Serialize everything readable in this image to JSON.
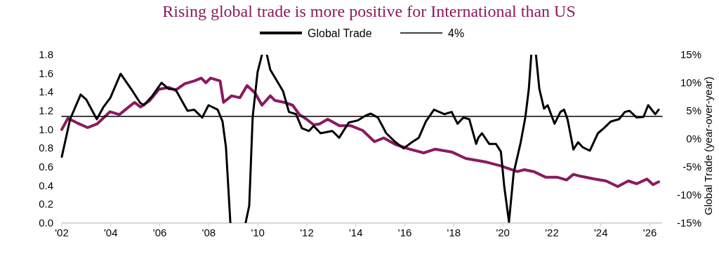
{
  "chart_data": {
    "type": "line",
    "title": "Rising global trade is more positive for International than US",
    "y2label": "Global Trade (year-over-year)",
    "legend": "top",
    "grid": false,
    "xlim": [
      2002,
      2026.5
    ],
    "xticks": [
      {
        "value": 2002,
        "label": "'02"
      },
      {
        "value": 2004,
        "label": "'04"
      },
      {
        "value": 2006,
        "label": "'06"
      },
      {
        "value": 2008,
        "label": "'08"
      },
      {
        "value": 2010,
        "label": "'10"
      },
      {
        "value": 2012,
        "label": "'12"
      },
      {
        "value": 2014,
        "label": "'14"
      },
      {
        "value": 2016,
        "label": "'16"
      },
      {
        "value": 2018,
        "label": "'18"
      },
      {
        "value": 2020,
        "label": "'20"
      },
      {
        "value": 2022,
        "label": "'22"
      },
      {
        "value": 2024,
        "label": "'24"
      },
      {
        "value": 2026,
        "label": "'26"
      }
    ],
    "ylim": [
      0,
      1.8
    ],
    "yticks": [
      {
        "value": 0,
        "label": "0.0"
      },
      {
        "value": 0.2,
        "label": "0.2"
      },
      {
        "value": 0.4,
        "label": "0.4"
      },
      {
        "value": 0.6,
        "label": "0.6"
      },
      {
        "value": 0.8,
        "label": "0.8"
      },
      {
        "value": 1,
        "label": "1.0"
      },
      {
        "value": 1.2,
        "label": "1.2"
      },
      {
        "value": 1.4,
        "label": "1.4"
      },
      {
        "value": 1.6,
        "label": "1.6"
      },
      {
        "value": 1.8,
        "label": "1.8"
      }
    ],
    "y2lim": [
      -15,
      15
    ],
    "y2ticks": [
      {
        "value": -15,
        "label": "-15%"
      },
      {
        "value": -10,
        "label": "-10%"
      },
      {
        "value": -5,
        "label": "-5%"
      },
      {
        "value": 0,
        "label": "0%"
      },
      {
        "value": 5,
        "label": "5%"
      },
      {
        "value": 10,
        "label": "10%"
      },
      {
        "value": 15,
        "label": "15%"
      }
    ],
    "series": [
      {
        "color": "#8b1a5e",
        "x": [
          2002.0,
          2002.25,
          2002.63,
          2003.06,
          2003.44,
          2003.97,
          2004.35,
          2004.73,
          2004.97,
          2005.21,
          2005.59,
          2005.97,
          2006.36,
          2006.64,
          2007.02,
          2007.41,
          2007.69,
          2007.88,
          2008.07,
          2008.46,
          2008.6,
          2008.93,
          2009.27,
          2009.56,
          2009.89,
          2010.17,
          2010.51,
          2010.7,
          2011.08,
          2011.42,
          2011.7,
          2011.99,
          2012.28,
          2012.52,
          2012.85,
          2013.33,
          2013.8,
          2014.28,
          2014.76,
          2015.14,
          2015.62,
          2016.19,
          2016.77,
          2017.24,
          2017.91,
          2018.49,
          2019.15,
          2019.35,
          2019.92,
          2020.59,
          2020.88,
          2021.26,
          2021.74,
          2022.21,
          2022.6,
          2022.88,
          2023.17,
          2023.74,
          2024.21,
          2024.69,
          2025.12,
          2025.46,
          2025.88,
          2026.13,
          2026.36
        ],
        "values": [
          1.0,
          1.12,
          1.07,
          1.02,
          1.06,
          1.19,
          1.16,
          1.24,
          1.29,
          1.24,
          1.31,
          1.43,
          1.45,
          1.42,
          1.49,
          1.52,
          1.55,
          1.5,
          1.55,
          1.52,
          1.29,
          1.36,
          1.34,
          1.47,
          1.39,
          1.26,
          1.36,
          1.31,
          1.29,
          1.26,
          1.16,
          1.11,
          1.05,
          1.06,
          1.11,
          1.04,
          1.04,
          0.99,
          0.87,
          0.91,
          0.84,
          0.79,
          0.75,
          0.79,
          0.76,
          0.69,
          0.66,
          0.65,
          0.61,
          0.55,
          0.57,
          0.55,
          0.49,
          0.49,
          0.46,
          0.52,
          0.5,
          0.47,
          0.45,
          0.39,
          0.45,
          0.42,
          0.47,
          0.41,
          0.44
        ]
      },
      {
        "name": "Global Trade",
        "color": "#000000",
        "axis": "y2",
        "x": [
          2002.0,
          2002.34,
          2002.77,
          2003.0,
          2003.43,
          2003.69,
          2003.98,
          2004.4,
          2004.83,
          2005.2,
          2005.35,
          2005.7,
          2006.07,
          2006.36,
          2006.64,
          2007.13,
          2007.4,
          2007.73,
          2007.99,
          2008.36,
          2008.56,
          2008.7,
          2008.88,
          2009.2,
          2009.5,
          2009.65,
          2009.79,
          2009.99,
          2010.17,
          2010.27,
          2010.37,
          2010.51,
          2010.85,
          2011.03,
          2011.27,
          2011.56,
          2011.8,
          2012.09,
          2012.28,
          2012.56,
          2013.04,
          2013.32,
          2013.71,
          2014.09,
          2014.38,
          2014.61,
          2014.9,
          2015.24,
          2015.62,
          2015.95,
          2016.29,
          2016.57,
          2016.86,
          2017.19,
          2017.62,
          2017.91,
          2018.15,
          2018.39,
          2018.63,
          2018.91,
          2019.0,
          2019.15,
          2019.44,
          2019.72,
          2019.92,
          2020.06,
          2020.25,
          2020.44,
          2020.73,
          2020.92,
          2021.06,
          2021.16,
          2021.25,
          2021.35,
          2021.49,
          2021.68,
          2021.83,
          2022.11,
          2022.35,
          2022.5,
          2022.64,
          2022.88,
          2023.07,
          2023.26,
          2023.55,
          2023.88,
          2024.12,
          2024.41,
          2024.74,
          2024.98,
          2025.17,
          2025.46,
          2025.74,
          2025.93,
          2026.22,
          2026.36
        ],
        "values": [
          -3.2,
          3.5,
          7.9,
          7.0,
          3.5,
          5.6,
          7.3,
          11.6,
          8.9,
          6.4,
          6.0,
          7.7,
          10.0,
          8.9,
          8.8,
          5.0,
          5.2,
          3.8,
          6.0,
          5.2,
          3.1,
          -1.5,
          -15,
          null,
          -15,
          -11.9,
          3.9,
          11.9,
          15,
          null,
          15,
          12.3,
          9.8,
          8.5,
          4.8,
          4.4,
          1.9,
          1.4,
          2.3,
          1.0,
          1.4,
          0.2,
          2.9,
          3.3,
          4.1,
          4.5,
          3.8,
          1.0,
          -0.6,
          -1.7,
          -0.6,
          0.2,
          3.1,
          5.2,
          4.4,
          4.8,
          2.7,
          3.8,
          3.5,
          -0.9,
          0.2,
          1.0,
          -0.9,
          -0.9,
          -2.3,
          -8.6,
          -14.8,
          -6.1,
          -0.6,
          3.9,
          8.9,
          15,
          null,
          15,
          8.9,
          5.4,
          6.0,
          2.7,
          4.8,
          5.2,
          3.5,
          -1.9,
          -0.6,
          -1.5,
          -2.1,
          1.0,
          1.9,
          3.1,
          3.5,
          4.8,
          5.0,
          3.8,
          3.9,
          6.0,
          4.4,
          5.2
        ]
      },
      {
        "name": "4%",
        "color": "#000000",
        "axis": "y2",
        "x": [
          2002,
          2026.5
        ],
        "values": [
          4,
          4
        ]
      }
    ]
  }
}
